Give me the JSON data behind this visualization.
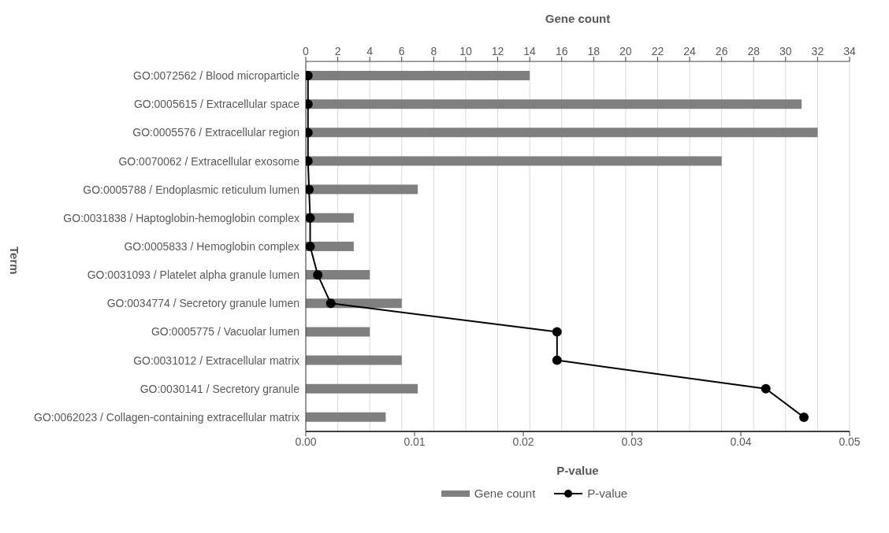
{
  "chart_data": {
    "type": "bar",
    "orientation": "horizontal",
    "xlabel": "P-value",
    "x2label": "Gene count",
    "ylabel": "Term",
    "categories": [
      "GO:0072562 / Blood microparticle",
      "GO:0005615 / Extracellular space",
      "GO:0005576 / Extracellular region",
      "GO:0070062 / Extracellular exosome",
      "GO:0005788 / Endoplasmic reticulum lumen",
      "GO:0031838 / Haptoglobin-hemoglobin complex",
      "GO:0005833 / Hemoglobin complex",
      "GO:0031093 / Platelet alpha granule lumen",
      "GO:0034774 / Secretory granule lumen",
      "GO:0005775 / Vacuolar lumen",
      "GO:0031012 / Extracellular matrix",
      "GO:0030141 / Secretory granule",
      "GO:0062023 / Collagen-containing extracellular matrix"
    ],
    "series": [
      {
        "name": "Gene count",
        "axis": "x2",
        "color": "#7f7f7f",
        "values": [
          14,
          31,
          32,
          26,
          7,
          3,
          3,
          4,
          6,
          4,
          6,
          7,
          5
        ]
      },
      {
        "name": "P-value",
        "type": "line",
        "color": "#000000",
        "marker": "circle",
        "line_style": "solid",
        "values": [
          0.0002,
          0.0002,
          0.0002,
          0.0002,
          0.0003,
          0.0004,
          0.0004,
          0.0011,
          0.0023,
          0.0231,
          0.0231,
          0.0423,
          0.0458
        ]
      }
    ],
    "xlim": [
      0,
      0.05
    ],
    "xticks": [
      {
        "value": 0,
        "label": "0.00"
      },
      0.01,
      0.02,
      0.03,
      0.04,
      0.05
    ],
    "x2lim": [
      0,
      34
    ],
    "x2ticks": [
      0,
      2,
      4,
      6,
      8,
      10,
      12,
      14,
      16,
      18,
      20,
      22,
      24,
      26,
      28,
      30,
      32,
      34
    ],
    "grid": "x",
    "legend": "bottom"
  }
}
